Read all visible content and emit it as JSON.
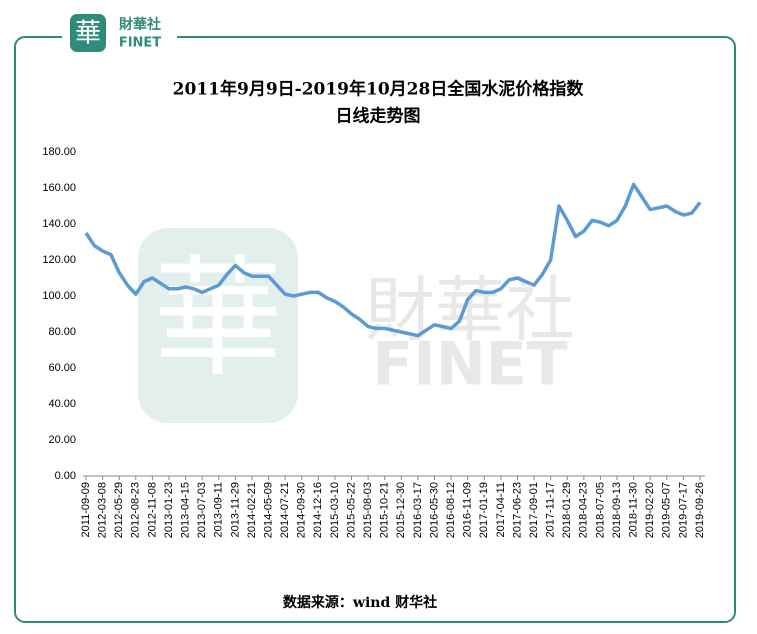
{
  "logo": {
    "mark": "華",
    "name": "財華社",
    "latin": "FINET"
  },
  "chart_data": {
    "type": "line",
    "title": "2011年9月9日-2019年10月28日全国水泥价格指数",
    "subtitle": "日线走势图",
    "source": "数据来源：wind   财华社",
    "categories": [
      "2011-09-09",
      null,
      "2012-03-08",
      null,
      "2012-05-29",
      null,
      "2012-08-23",
      null,
      "2012-11-08",
      null,
      "2013-01-23",
      null,
      "2013-04-15",
      null,
      "2013-07-03",
      null,
      "2013-09-11",
      null,
      "2013-11-29",
      null,
      "2014-02-21",
      null,
      "2014-05-09",
      null,
      "2014-07-21",
      null,
      "2014-09-30",
      null,
      "2014-12-16",
      null,
      "2015-03-10",
      null,
      "2015-05-22",
      null,
      "2015-08-03",
      null,
      "2015-10-21",
      null,
      "2015-12-30",
      null,
      "2016-03-17",
      null,
      "2016-05-30",
      null,
      "2016-08-12",
      null,
      "2016-11-09",
      null,
      "2017-01-19",
      null,
      "2017-04-11",
      null,
      "2017-06-23",
      null,
      "2017-09-01",
      null,
      "2017-11-17",
      null,
      "2018-01-29",
      null,
      "2018-04-23",
      null,
      "2018-07-05",
      null,
      "2018-09-13",
      null,
      "2018-11-30",
      null,
      "2019-02-20",
      null,
      "2019-05-07",
      null,
      "2019-07-17",
      null,
      "2019-09-26"
    ],
    "values": [
      135,
      128,
      125,
      123,
      113,
      106,
      101,
      108,
      110,
      107,
      104,
      104,
      105,
      104,
      102,
      104,
      106,
      112,
      117,
      113,
      111,
      111,
      111,
      106,
      101,
      100,
      101,
      102,
      102,
      99,
      97,
      94,
      90,
      87,
      83,
      82,
      82,
      81,
      80,
      79,
      78,
      81,
      84,
      83,
      82,
      86,
      98,
      103,
      102,
      102,
      104,
      109,
      110,
      108,
      106,
      112,
      120,
      150,
      142,
      133,
      136,
      142,
      141,
      139,
      142,
      150,
      162,
      155,
      148,
      149,
      150,
      147,
      145,
      146,
      152
    ],
    "color": "#5b9bd5",
    "ylim": [
      0,
      180
    ],
    "yticks": [
      {
        "value": 0,
        "label": "0.00"
      },
      {
        "value": 20,
        "label": "20.00"
      },
      {
        "value": 40,
        "label": "40.00"
      },
      {
        "value": 60,
        "label": "60.00"
      },
      {
        "value": 80,
        "label": "80.00"
      },
      {
        "value": 100,
        "label": "100.00"
      },
      {
        "value": 120,
        "label": "120.00"
      },
      {
        "value": 140,
        "label": "140.00"
      },
      {
        "value": 160,
        "label": "160.00"
      },
      {
        "value": 180,
        "label": "180.00"
      }
    ],
    "grid": false
  }
}
